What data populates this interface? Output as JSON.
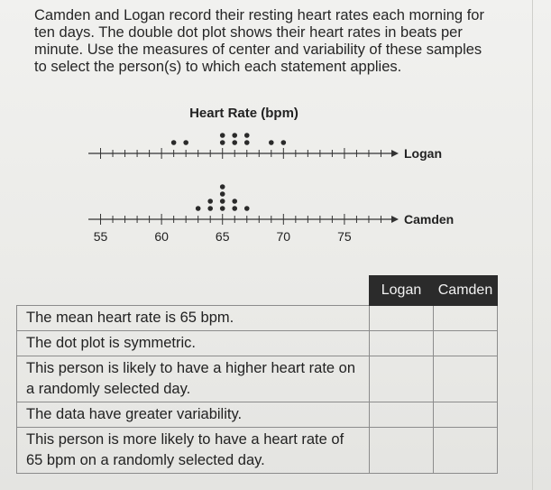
{
  "intro": "Camden and Logan record their resting heart rates each morning for\nten days. The double dot plot shows their heart rates in beats per\nminute. Use the measures of center and variability of these samples\nto select the person(s) to which each statement applies.",
  "chart_data": {
    "type": "dot plot",
    "title": "Heart Rate (bpm)",
    "axis": {
      "min": 54,
      "max": 79,
      "tick_labels": [
        "55",
        "60",
        "65",
        "70",
        "75"
      ]
    },
    "series": [
      {
        "name": "Logan",
        "values": [
          61,
          62,
          65,
          65,
          66,
          66,
          67,
          67,
          69,
          70
        ]
      },
      {
        "name": "Camden",
        "values": [
          63,
          64,
          64,
          65,
          65,
          65,
          65,
          66,
          66,
          67
        ]
      }
    ]
  },
  "table": {
    "headers": [
      "Logan",
      "Camden"
    ],
    "rows": [
      {
        "statement": "The mean heart rate is 65 bpm."
      },
      {
        "statement": "The dot plot is symmetric."
      },
      {
        "statement": "This person is likely to have a higher heart rate on a randomly selected day."
      },
      {
        "statement": "The data have greater variability."
      },
      {
        "statement": "This person is more likely to have a heart rate of 65 bpm on a randomly selected day."
      }
    ]
  }
}
